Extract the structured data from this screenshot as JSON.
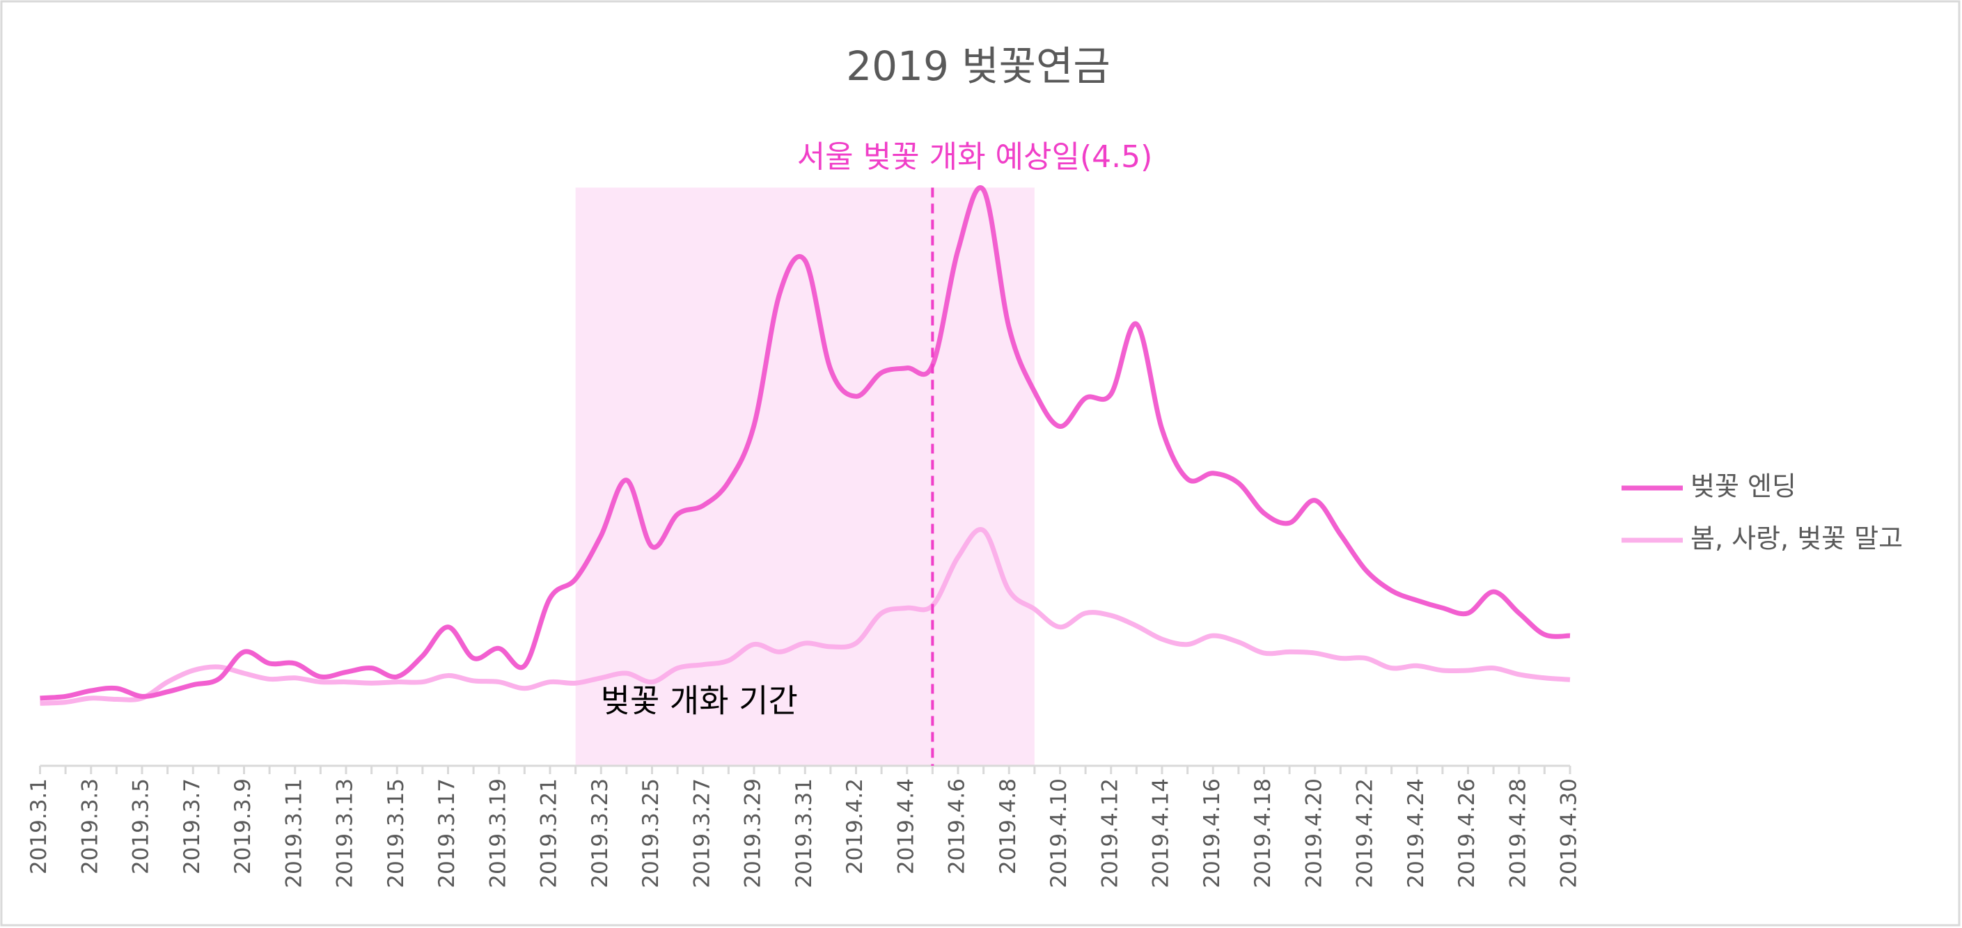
{
  "chart_data": {
    "type": "line",
    "title": "2019 벚꽃연금",
    "categories": [
      "2019.3.1",
      null,
      "2019.3.3",
      null,
      "2019.3.5",
      null,
      "2019.3.7",
      null,
      "2019.3.9",
      null,
      "2019.3.11",
      null,
      "2019.3.13",
      null,
      "2019.3.15",
      null,
      "2019.3.17",
      null,
      "2019.3.19",
      null,
      "2019.3.21",
      null,
      "2019.3.23",
      null,
      "2019.3.25",
      null,
      "2019.3.27",
      null,
      "2019.3.29",
      null,
      "2019.3.31",
      null,
      "2019.4.2",
      null,
      "2019.4.4",
      null,
      "2019.4.6",
      null,
      "2019.4.8",
      null,
      "2019.4.10",
      null,
      "2019.4.12",
      null,
      "2019.4.14",
      null,
      "2019.4.16",
      null,
      "2019.4.18",
      null,
      "2019.4.20",
      null,
      "2019.4.22",
      null,
      "2019.4.24",
      null,
      "2019.4.26",
      null,
      "2019.4.28",
      null,
      "2019.4.30"
    ],
    "series": [
      {
        "name": "벚꽃 엔딩",
        "color": "#f25fd0",
        "values": [
          11.7,
          12,
          13,
          13.4,
          12,
          12.8,
          14,
          15,
          19.7,
          17.7,
          17.7,
          15.4,
          16.2,
          16.9,
          15.4,
          19,
          24,
          18.6,
          20.3,
          17.3,
          29,
          32.3,
          39.8,
          49.4,
          37.9,
          43.5,
          45,
          49.1,
          58.9,
          81.6,
          87.4,
          68.6,
          63.9,
          68,
          68.8,
          69.3,
          89.2,
          99.6,
          75.8,
          64.7,
          58.7,
          63.6,
          64.3,
          76.4,
          58.2,
          49.6,
          50.6,
          48.9,
          43.7,
          42,
          45.9,
          40,
          33.8,
          30.3,
          28.6,
          27.3,
          26.4,
          30.1,
          26.4,
          22.7,
          22.5
        ]
      },
      {
        "name": "봄, 사랑, 벚꽃 말고",
        "color": "#fbb0ea",
        "values": [
          10.8,
          11,
          11.7,
          11.5,
          11.7,
          14.5,
          16.5,
          17.1,
          16,
          15,
          15.2,
          14.5,
          14.5,
          14.3,
          14.5,
          14.5,
          15.6,
          14.7,
          14.5,
          13.4,
          14.5,
          14.3,
          15.2,
          16,
          14.5,
          16.9,
          17.5,
          18.2,
          21,
          19.7,
          21.2,
          20.6,
          21.2,
          26.4,
          27.3,
          27.7,
          36.1,
          40.7,
          30.3,
          27.1,
          24,
          26.4,
          26,
          24.2,
          21.9,
          21,
          22.5,
          21.4,
          19.5,
          19.7,
          19.5,
          18.6,
          18.6,
          16.9,
          17.3,
          16.5,
          16.5,
          16.9,
          15.8,
          15.2,
          14.9
        ]
      }
    ],
    "ylim": [
      0,
      100
    ],
    "legend": "right",
    "annotations": {
      "period": {
        "label": "벚꽃 개화 기간",
        "from": 21,
        "to": 39,
        "color": "#fde6f8"
      },
      "marker": {
        "label": "서울 벚꽃 개화 예상일(4.5)",
        "at": 35,
        "color": "#f03fc8"
      }
    }
  }
}
